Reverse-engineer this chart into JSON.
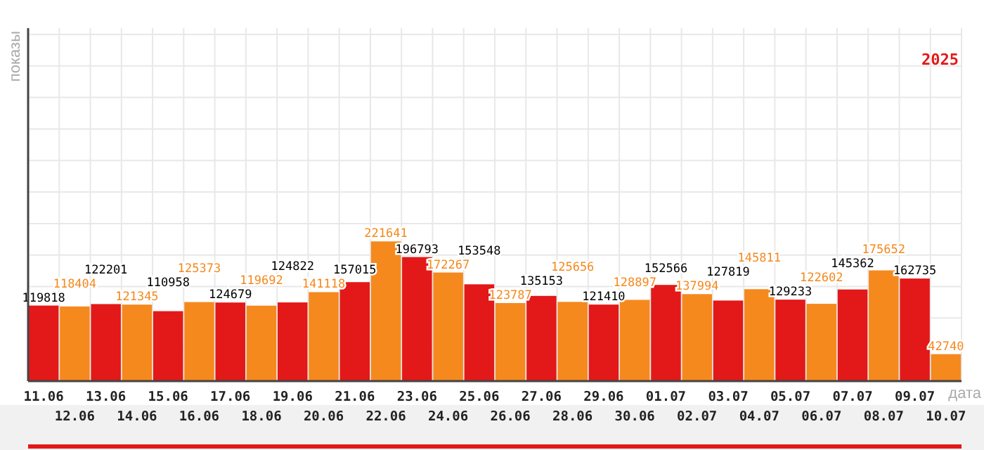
{
  "chart_data": {
    "type": "bar",
    "subtitle": "2025",
    "xlabel": "дата",
    "ylabel": "показы",
    "categories": [
      "11.06",
      "12.06",
      "13.06",
      "14.06",
      "15.06",
      "16.06",
      "17.06",
      "18.06",
      "19.06",
      "20.06",
      "21.06",
      "22.06",
      "23.06",
      "24.06",
      "25.06",
      "26.06",
      "27.06",
      "28.06",
      "29.06",
      "30.06",
      "01.07",
      "02.07",
      "03.07",
      "04.07",
      "05.07",
      "06.07",
      "07.07",
      "08.07",
      "09.07",
      "10.07"
    ],
    "values": [
      119818,
      118404,
      122201,
      121345,
      110958,
      125373,
      124679,
      119692,
      124822,
      141118,
      157015,
      221641,
      196793,
      172267,
      153548,
      123787,
      135153,
      125656,
      121410,
      128897,
      152566,
      137994,
      127819,
      145811,
      129233,
      122602,
      145362,
      175652,
      162735,
      42740
    ],
    "colors": [
      "#e31818",
      "#f5891e",
      "#e31818",
      "#f5891e",
      "#e31818",
      "#f5891e",
      "#e31818",
      "#f5891e",
      "#e31818",
      "#f5891e",
      "#e31818",
      "#f5891e",
      "#e31818",
      "#f5891e",
      "#e31818",
      "#f5891e",
      "#e31818",
      "#f5891e",
      "#e31818",
      "#f5891e",
      "#e31818",
      "#f5891e",
      "#e31818",
      "#f5891e",
      "#e31818",
      "#f5891e",
      "#e31818",
      "#f5891e",
      "#e31818",
      "#f5891e"
    ],
    "ylim": [
      0,
      560000
    ],
    "yticks": [
      {
        "value": 0,
        "label": null
      },
      {
        "value": 50000,
        "label": null
      },
      {
        "value": 100000,
        "label": null
      },
      {
        "value": 150000,
        "label": null
      },
      {
        "value": 200000,
        "label": null
      },
      {
        "value": 250000,
        "label": null
      },
      {
        "value": 300000,
        "label": null
      },
      {
        "value": 350000,
        "label": null
      },
      {
        "value": 400000,
        "label": null
      },
      {
        "value": 450000,
        "label": null
      },
      {
        "value": 500000,
        "label": null
      },
      {
        "value": 550000,
        "label": null
      }
    ],
    "tick_labels": "x",
    "grid": true,
    "data_labels": true
  }
}
